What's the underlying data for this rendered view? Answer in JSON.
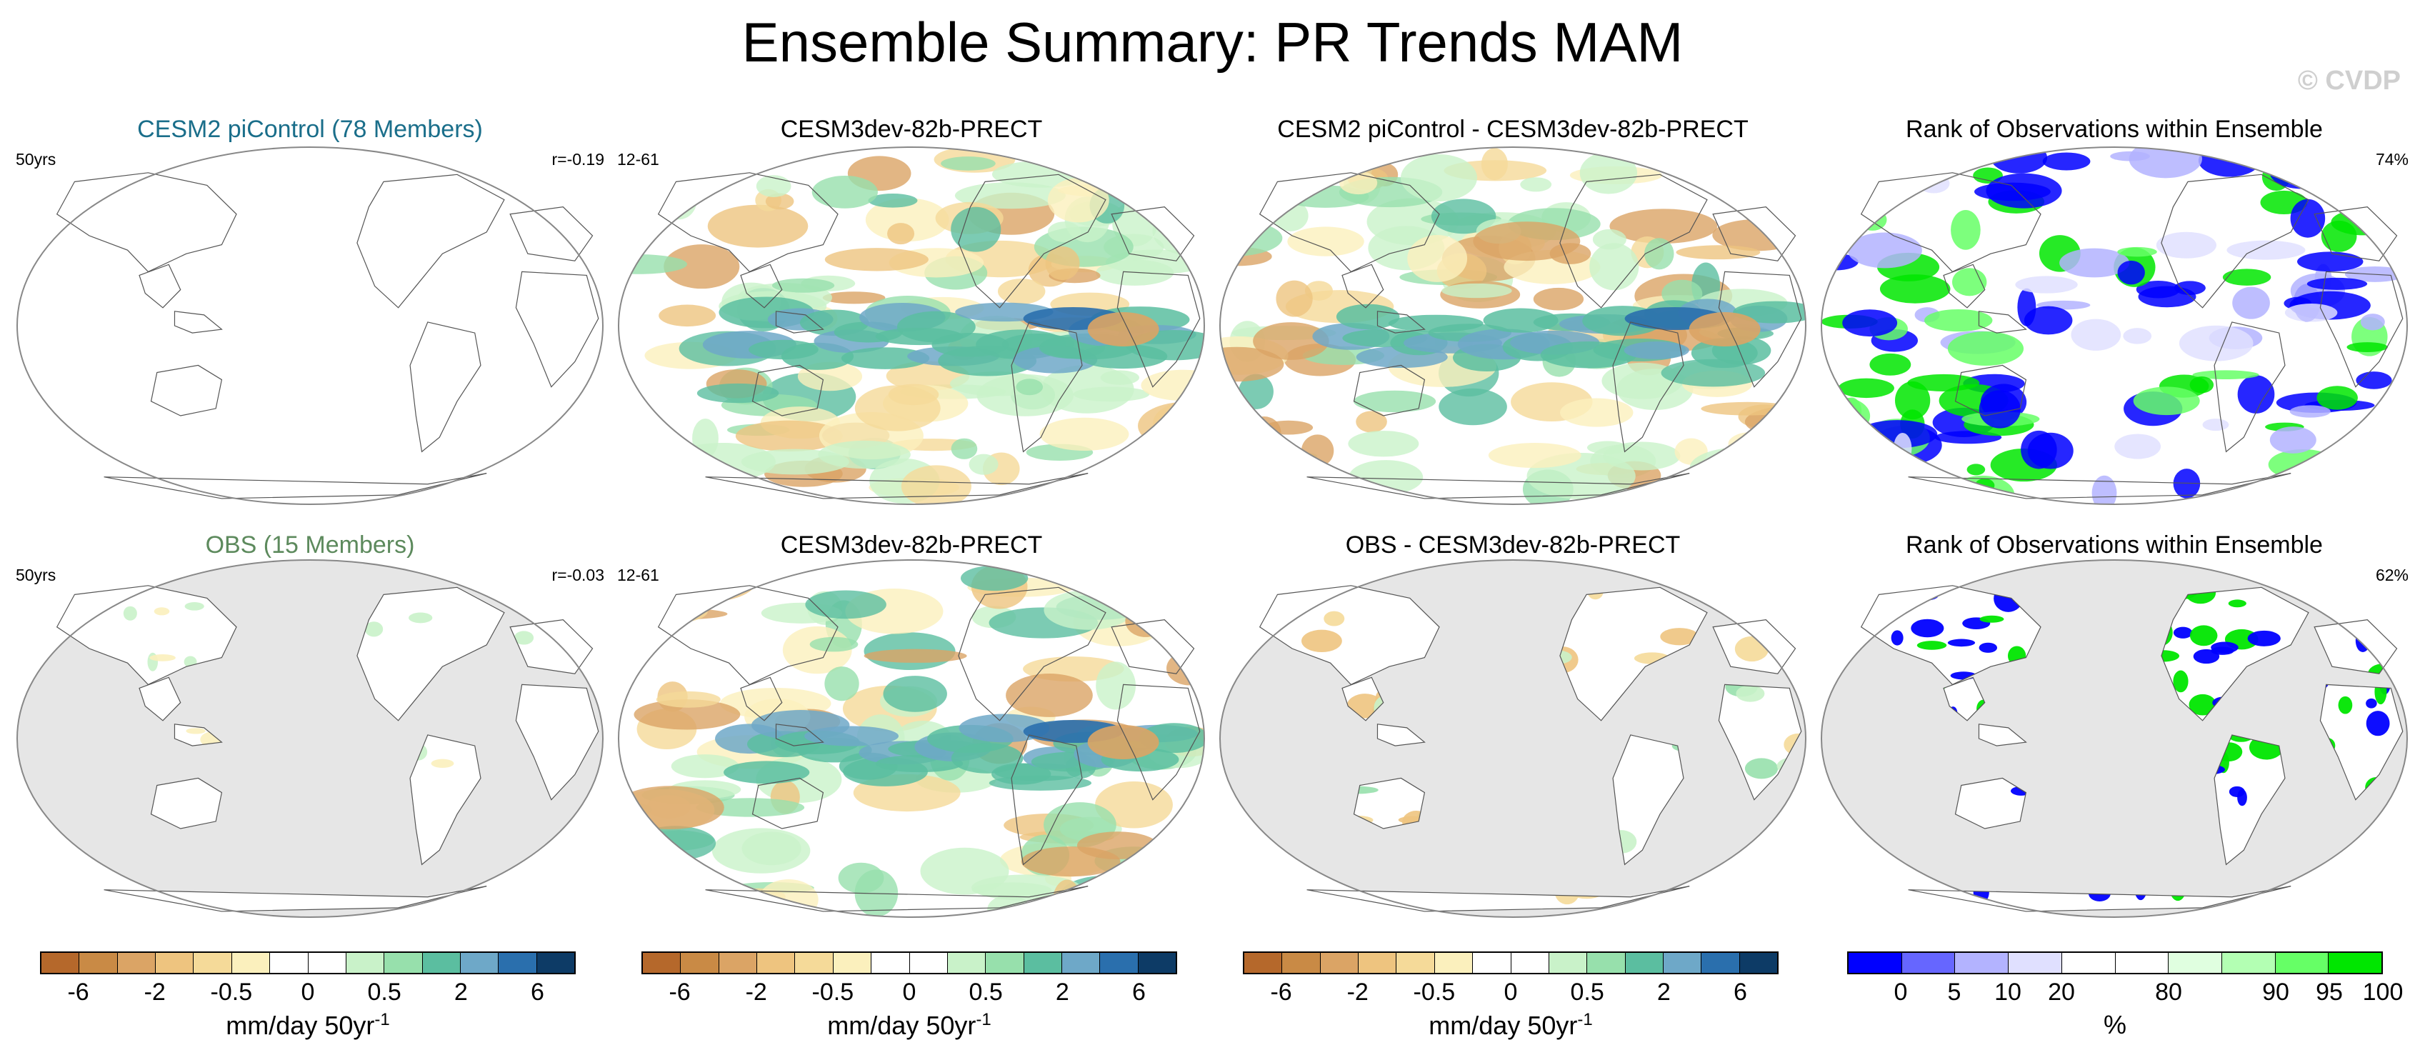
{
  "title": "Ensemble Summary: PR Trends MAM",
  "watermark": "© CVDP",
  "chart_data": [
    {
      "type": "heatmap",
      "title": "CESM2 piControl (78 Members)",
      "title_color": "#1a6e8a",
      "left_label": "50yrs",
      "right_label": "r=-0.19",
      "field": "empty",
      "land_mask": false
    },
    {
      "type": "heatmap",
      "title": "CESM3dev-82b-PRECT",
      "left_label": "12-61",
      "right_label": "",
      "field": "trend",
      "land_mask": false
    },
    {
      "type": "heatmap",
      "title": "CESM2 piControl - CESM3dev-82b-PRECT",
      "left_label": "",
      "right_label": "",
      "field": "diff",
      "land_mask": false
    },
    {
      "type": "heatmap",
      "title": "Rank of Observations within Ensemble",
      "left_label": "",
      "right_label": "74%",
      "field": "rank",
      "land_mask": false
    },
    {
      "type": "heatmap",
      "title": "OBS (15 Members)",
      "title_color": "#5d8a5d",
      "left_label": "50yrs",
      "right_label": "r=-0.03",
      "field": "obs_land",
      "land_mask": true
    },
    {
      "type": "heatmap",
      "title": "CESM3dev-82b-PRECT",
      "left_label": "12-61",
      "right_label": "",
      "field": "trend",
      "land_mask": false
    },
    {
      "type": "heatmap",
      "title": "OBS - CESM3dev-82b-PRECT",
      "left_label": "",
      "right_label": "",
      "field": "obs_diff_land",
      "land_mask": true
    },
    {
      "type": "heatmap",
      "title": "Rank of Observations within Ensemble",
      "left_label": "",
      "right_label": "62%",
      "field": "rank_land",
      "land_mask": true
    }
  ],
  "colorbars": {
    "trend": {
      "colors": [
        "#b5682b",
        "#c98a45",
        "#dba465",
        "#eec47f",
        "#f5da99",
        "#fbf0bd",
        "#ffffff",
        "#ffffff",
        "#c9f2c9",
        "#97e0ac",
        "#5bbea0",
        "#6ea8c8",
        "#2a6fad",
        "#0d3b66"
      ],
      "tick_labels": [
        "-6",
        "-2",
        "-0.5",
        "0",
        "0.5",
        "2",
        "6"
      ],
      "tick_positions": [
        1,
        3,
        5,
        7,
        9,
        11,
        13
      ],
      "units": "mm/day 50yr",
      "units_sup": "-1"
    },
    "rank": {
      "colors": [
        "#0000ff",
        "#6666ff",
        "#b3b3ff",
        "#e0e0ff",
        "#ffffff",
        "#ffffff",
        "#e0ffe0",
        "#b3ffb3",
        "#66ff66",
        "#00e600"
      ],
      "tick_labels": [
        "0",
        "5",
        "10",
        "20",
        "80",
        "90",
        "95",
        "100"
      ],
      "tick_positions": [
        1,
        2,
        3,
        4,
        6,
        8,
        9,
        10
      ],
      "units": "%"
    }
  }
}
